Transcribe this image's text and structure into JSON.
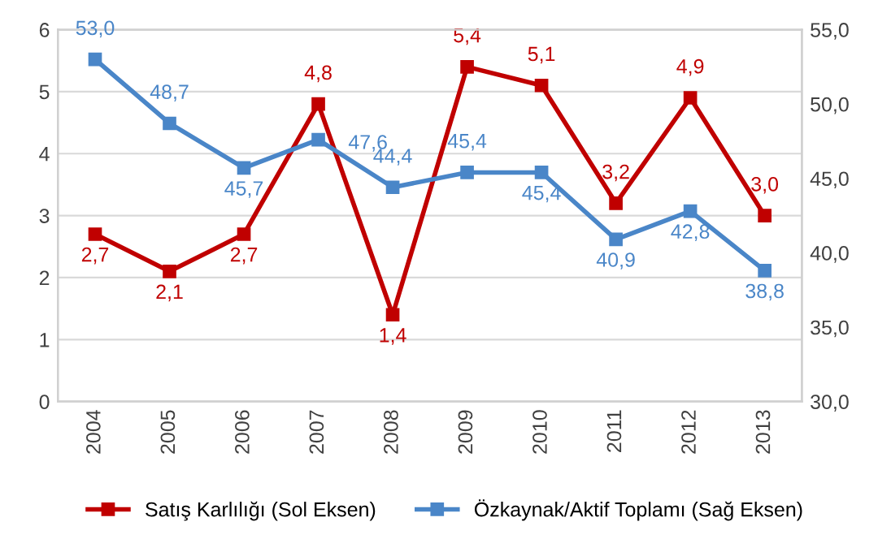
{
  "chart_data": {
    "type": "line",
    "categories": [
      "2004",
      "2005",
      "2006",
      "2007",
      "2008",
      "2009",
      "2010",
      "2011",
      "2012",
      "2013"
    ],
    "series": [
      {
        "name": "Satış Karlılığı (Sol Eksen)",
        "color": "#c00000",
        "values": [
          2.7,
          2.1,
          2.7,
          4.8,
          1.4,
          5.4,
          5.1,
          3.2,
          4.9,
          3.0
        ],
        "value_labels": [
          "2,7",
          "2,1",
          "2,7",
          "4,8",
          "1,4",
          "5,4",
          "5,1",
          "3,2",
          "4,9",
          "3,0"
        ]
      },
      {
        "name": "Özkaynak/Aktif Toplamı (Sağ Eksen)",
        "color": "#4a86c8",
        "axis": "y2",
        "values": [
          53.0,
          48.7,
          45.7,
          47.6,
          44.4,
          45.4,
          45.4,
          40.9,
          42.8,
          38.8
        ],
        "value_labels": [
          "53,0",
          "48,7",
          "45,7",
          "47,6",
          "44,4",
          "45,4",
          "45,4",
          "40,9",
          "42,8",
          "38,8"
        ]
      }
    ],
    "ylim": [
      0,
      6
    ],
    "yticks": [
      0,
      1,
      2,
      3,
      4,
      5,
      6
    ],
    "y2lim": [
      30,
      55
    ],
    "y2ticks": [
      {
        "value": 30,
        "label": "30,0"
      },
      {
        "value": 35,
        "label": "35,0"
      },
      {
        "value": 40,
        "label": "40,0"
      },
      {
        "value": 45,
        "label": "45,0"
      },
      {
        "value": 50,
        "label": "50,0"
      },
      {
        "value": 55,
        "label": "55,0"
      }
    ],
    "grid": "y",
    "legend": "bottom",
    "marker": "square",
    "line_style": "solid"
  }
}
